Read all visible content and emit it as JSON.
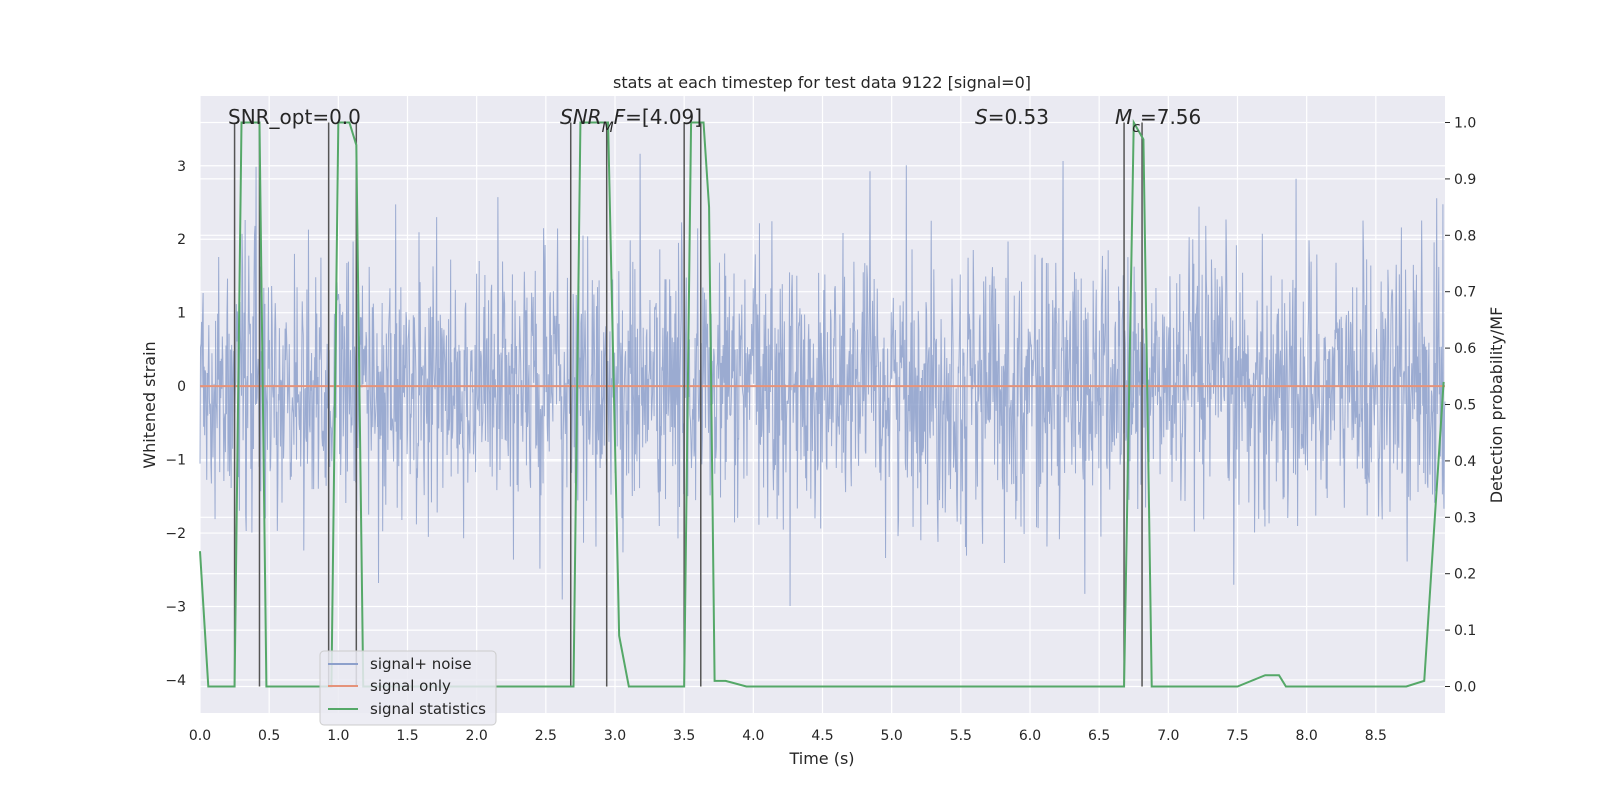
{
  "chart_data": {
    "type": "line",
    "title": "stats at each timestep for test data 9122 [signal=0]",
    "xlabel": "Time (s)",
    "ylabel": "Whitened strain",
    "y2label": "Detection probability/MF",
    "xlim": [
      0.0,
      9.0
    ],
    "ylim": [
      -4.45,
      3.95
    ],
    "y2lim": [
      -0.047,
      1.047
    ],
    "xticks": [
      0.0,
      0.5,
      1.0,
      1.5,
      2.0,
      2.5,
      3.0,
      3.5,
      4.0,
      4.5,
      5.0,
      5.5,
      6.0,
      6.5,
      7.0,
      7.5,
      8.0,
      8.5
    ],
    "xtick_labels": [
      "0.0",
      "0.5",
      "1.0",
      "1.5",
      "2.0",
      "2.5",
      "3.0",
      "3.5",
      "4.0",
      "4.5",
      "5.0",
      "5.5",
      "6.0",
      "6.5",
      "7.0",
      "7.5",
      "8.0",
      "8.5"
    ],
    "yticks": [
      3,
      2,
      1,
      0,
      -1,
      -2,
      -3,
      -4
    ],
    "ytick_labels": [
      "3",
      "2",
      "1",
      "0",
      "−1",
      "−2",
      "−3",
      "−4"
    ],
    "y2ticks": [
      1.0,
      0.9,
      0.8,
      0.7,
      0.6,
      0.5,
      0.4,
      0.3,
      0.2,
      0.1,
      0.0
    ],
    "y2tick_labels": [
      "1.0",
      "0.9",
      "0.8",
      "0.7",
      "0.6",
      "0.5",
      "0.4",
      "0.3",
      "0.2",
      "0.1",
      "0.0"
    ],
    "grid": true,
    "legend_placement": "lower-left",
    "annotations": [
      {
        "id": "snr-opt",
        "parts": [
          {
            "t": "SNR_opt=0.0",
            "i": false
          }
        ]
      },
      {
        "id": "snr-mf",
        "parts": [
          {
            "t": "SNR",
            "i": true
          },
          {
            "t": "M",
            "i": true,
            "sub": true
          },
          {
            "t": "F",
            "i": true
          },
          {
            "t": "=[4.09]",
            "i": false
          }
        ]
      },
      {
        "id": "s-value",
        "parts": [
          {
            "t": "S",
            "i": true
          },
          {
            "t": "=0.53",
            "i": false
          }
        ]
      },
      {
        "id": "mc-value",
        "parts": [
          {
            "t": "M",
            "i": true
          },
          {
            "t": "c",
            "i": true,
            "sub": true
          },
          {
            "t": "=7.56",
            "i": false
          }
        ]
      }
    ],
    "series": [
      {
        "name": "signal+ noise",
        "color": "#8da0cb",
        "kind": "noise",
        "axis": "left",
        "t_start": 0.0,
        "t_end": 9.0,
        "n_samples": 2400,
        "typical_range": [
          -2.0,
          2.0
        ],
        "peak_max": 3.4,
        "peak_min": -3.35
      },
      {
        "name": "signal only",
        "color": "#e5937a",
        "kind": "line",
        "axis": "left",
        "x": [
          0.0,
          9.0
        ],
        "y": [
          0.0,
          0.0
        ]
      },
      {
        "name": "signal statistics",
        "color": "#55a868",
        "kind": "line",
        "axis": "right",
        "x": [
          0.0,
          0.06,
          0.25,
          0.3,
          0.33,
          0.43,
          0.48,
          0.52,
          0.6,
          0.7,
          0.85,
          0.95,
          1.0,
          1.08,
          1.13,
          1.18,
          1.3,
          1.6,
          2.0,
          2.4,
          2.45,
          2.6,
          2.65,
          2.7,
          2.75,
          2.95,
          3.03,
          3.1,
          3.5,
          3.55,
          3.64,
          3.68,
          3.72,
          3.8,
          3.95,
          4.5,
          5.5,
          6.5,
          6.68,
          6.75,
          6.82,
          6.88,
          7.0,
          7.5,
          7.7,
          7.8,
          7.85,
          8.0,
          8.4,
          8.6,
          8.72,
          8.85,
          8.99
        ],
        "y": [
          0.24,
          0.0,
          0.0,
          1.0,
          1.0,
          1.0,
          0.0,
          0.0,
          0.0,
          0.0,
          0.0,
          0.0,
          1.0,
          1.0,
          0.96,
          0.0,
          0.0,
          0.0,
          0.0,
          0.0,
          0.0,
          0.0,
          0.0,
          0.0,
          1.0,
          1.0,
          0.09,
          0.0,
          0.0,
          1.0,
          1.0,
          0.85,
          0.01,
          0.01,
          0.0,
          0.0,
          0.0,
          0.0,
          0.0,
          1.0,
          0.97,
          0.0,
          0.0,
          0.0,
          0.02,
          0.02,
          0.0,
          0.0,
          0.0,
          0.0,
          0.0,
          0.01,
          0.54
        ]
      }
    ],
    "vertical_markers": [
      0.25,
      0.43,
      0.93,
      1.13,
      2.68,
      2.94,
      3.5,
      3.62,
      6.68,
      6.81
    ]
  }
}
